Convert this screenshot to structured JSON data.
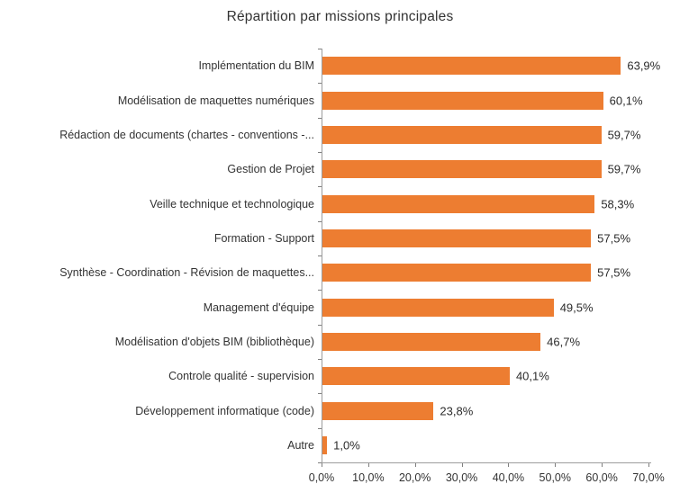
{
  "chart_data": {
    "type": "bar",
    "orientation": "horizontal",
    "title": "Répartition par missions principales",
    "categories": [
      "Implémentation du BIM",
      "Modélisation de maquettes numériques",
      "Rédaction de documents (chartes - conventions -...",
      "Gestion de Projet",
      "Veille technique et technologique",
      "Formation - Support",
      "Synthèse - Coordination - Révision de maquettes...",
      "Management d'équipe",
      "Modélisation d'objets BIM (bibliothèque)",
      "Controle qualité - supervision",
      "Développement informatique (code)",
      "Autre"
    ],
    "values": [
      63.9,
      60.1,
      59.7,
      59.7,
      58.3,
      57.5,
      57.5,
      49.5,
      46.7,
      40.1,
      23.8,
      1.0
    ],
    "value_labels": [
      "63,9%",
      "60,1%",
      "59,7%",
      "59,7%",
      "58,3%",
      "57,5%",
      "57,5%",
      "49,5%",
      "46,7%",
      "40,1%",
      "23,8%",
      "1,0%"
    ],
    "x_tick_labels": [
      "0,0%",
      "10,0%",
      "20,0%",
      "30,0%",
      "40,0%",
      "50,0%",
      "60,0%",
      "70,0%"
    ],
    "x_tick_values": [
      0,
      10,
      20,
      30,
      40,
      50,
      60,
      70
    ],
    "xlim": [
      0,
      70
    ],
    "grid": false,
    "legend": false,
    "data_labels": true,
    "colors": {
      "bar": "#ED7D31",
      "axis_line": "#9d9d9d",
      "tick_mark": "#7f7f7f",
      "text": "#333333"
    }
  }
}
